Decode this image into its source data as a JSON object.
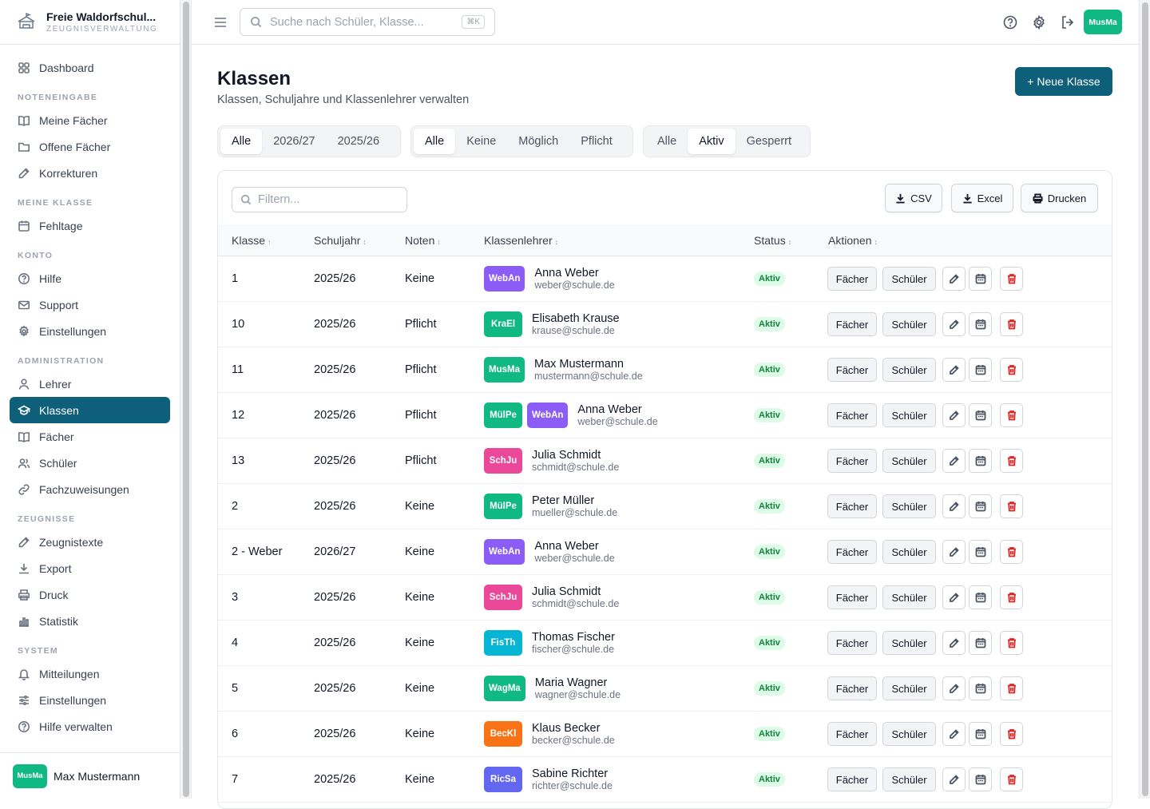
{
  "brand": {
    "title": "Freie Waldorfschul...",
    "subtitle": "ZEUGNISVERWALTUNG"
  },
  "nav": [
    {
      "type": "item",
      "name": "sidebar-item-dashboard",
      "icon": "dashboard",
      "label": "Dashboard"
    },
    {
      "type": "section",
      "label": "NOTENEINGABE"
    },
    {
      "type": "item",
      "name": "sidebar-item-meine-faecher",
      "icon": "book",
      "label": "Meine Fächer"
    },
    {
      "type": "item",
      "name": "sidebar-item-offene-faecher",
      "icon": "folder",
      "label": "Offene Fächer"
    },
    {
      "type": "item",
      "name": "sidebar-item-korrekturen",
      "icon": "edit",
      "label": "Korrekturen"
    },
    {
      "type": "section",
      "label": "MEINE KLASSE"
    },
    {
      "type": "item",
      "name": "sidebar-item-fehltage",
      "icon": "calendar",
      "label": "Fehltage"
    },
    {
      "type": "section",
      "label": "KONTO"
    },
    {
      "type": "item",
      "name": "sidebar-item-hilfe",
      "icon": "help",
      "label": "Hilfe"
    },
    {
      "type": "item",
      "name": "sidebar-item-support",
      "icon": "mail",
      "label": "Support"
    },
    {
      "type": "item",
      "name": "sidebar-item-einstellungen",
      "icon": "gear",
      "label": "Einstellungen"
    },
    {
      "type": "section",
      "label": "ADMINISTRATION"
    },
    {
      "type": "item",
      "name": "sidebar-item-lehrer",
      "icon": "user",
      "label": "Lehrer"
    },
    {
      "type": "item",
      "name": "sidebar-item-klassen",
      "icon": "cap",
      "label": "Klassen",
      "active": true
    },
    {
      "type": "item",
      "name": "sidebar-item-faecher",
      "icon": "book",
      "label": "Fächer"
    },
    {
      "type": "item",
      "name": "sidebar-item-schueler",
      "icon": "users",
      "label": "Schüler"
    },
    {
      "type": "item",
      "name": "sidebar-item-fachzuweisungen",
      "icon": "link",
      "label": "Fachzuweisungen"
    },
    {
      "type": "section",
      "label": "ZEUGNISSE"
    },
    {
      "type": "item",
      "name": "sidebar-item-zeugnistexte",
      "icon": "edit",
      "label": "Zeugnistexte"
    },
    {
      "type": "item",
      "name": "sidebar-item-export",
      "icon": "download",
      "label": "Export"
    },
    {
      "type": "item",
      "name": "sidebar-item-druck",
      "icon": "printer",
      "label": "Druck"
    },
    {
      "type": "item",
      "name": "sidebar-item-statistik",
      "icon": "chart",
      "label": "Statistik"
    },
    {
      "type": "section",
      "label": "SYSTEM"
    },
    {
      "type": "item",
      "name": "sidebar-item-mitteilungen",
      "icon": "bell",
      "label": "Mitteilungen"
    },
    {
      "type": "item",
      "name": "sidebar-item-system-einstellungen",
      "icon": "sliders",
      "label": "Einstellungen"
    },
    {
      "type": "item",
      "name": "sidebar-item-hilfe-verwalten",
      "icon": "help",
      "label": "Hilfe verwalten"
    }
  ],
  "user": {
    "initials": "MusMa",
    "name": "Max Mustermann"
  },
  "search": {
    "placeholder": "Suche nach Schüler, Klasse...",
    "shortcut": "⌘K"
  },
  "page": {
    "title": "Klassen",
    "subtitle": "Klassen, Schuljahre und Klassenlehrer verwalten",
    "new_button": "+ Neue Klasse"
  },
  "filters": {
    "year": {
      "options": [
        "Alle",
        "2026/27",
        "2025/26"
      ],
      "selected": 0
    },
    "grades": {
      "options": [
        "Alle",
        "Keine",
        "Möglich",
        "Pflicht"
      ],
      "selected": 0
    },
    "status": {
      "options": [
        "Alle",
        "Aktiv",
        "Gesperrt"
      ],
      "selected": 1
    }
  },
  "table": {
    "filter_placeholder": "Filtern...",
    "export": {
      "csv": "CSV",
      "excel": "Excel",
      "print": "Drucken"
    },
    "columns": [
      "Klasse",
      "Schuljahr",
      "Noten",
      "Klassenlehrer",
      "Status",
      "Aktionen"
    ],
    "sort_asc": "↑",
    "sort_none": "↕",
    "actions": {
      "faecher": "Fächer",
      "schueler": "Schüler"
    },
    "rows": [
      {
        "klasse": "1",
        "jahr": "2025/26",
        "noten": "Keine",
        "badges": [
          {
            "t": "WebAn",
            "c": "#8b5cf6"
          }
        ],
        "name": "Anna Weber",
        "email": "weber@schule.de",
        "status": "Aktiv"
      },
      {
        "klasse": "10",
        "jahr": "2025/26",
        "noten": "Pflicht",
        "badges": [
          {
            "t": "KraEl",
            "c": "#10b981"
          }
        ],
        "name": "Elisabeth Krause",
        "email": "krause@schule.de",
        "status": "Aktiv"
      },
      {
        "klasse": "11",
        "jahr": "2025/26",
        "noten": "Pflicht",
        "badges": [
          {
            "t": "MusMa",
            "c": "#10b981"
          }
        ],
        "name": "Max Mustermann",
        "email": "mustermann@schule.de",
        "status": "Aktiv"
      },
      {
        "klasse": "12",
        "jahr": "2025/26",
        "noten": "Pflicht",
        "badges": [
          {
            "t": "MülPe",
            "c": "#10b981"
          },
          {
            "t": "WebAn",
            "c": "#8b5cf6"
          }
        ],
        "name": "Anna Weber",
        "email": "weber@schule.de",
        "status": "Aktiv"
      },
      {
        "klasse": "13",
        "jahr": "2025/26",
        "noten": "Pflicht",
        "badges": [
          {
            "t": "SchJu",
            "c": "#ec4899"
          }
        ],
        "name": "Julia Schmidt",
        "email": "schmidt@schule.de",
        "status": "Aktiv"
      },
      {
        "klasse": "2",
        "jahr": "2025/26",
        "noten": "Keine",
        "badges": [
          {
            "t": "MülPe",
            "c": "#10b981"
          }
        ],
        "name": "Peter Müller",
        "email": "mueller@schule.de",
        "status": "Aktiv"
      },
      {
        "klasse": "2 - Weber",
        "jahr": "2026/27",
        "noten": "Keine",
        "badges": [
          {
            "t": "WebAn",
            "c": "#8b5cf6"
          }
        ],
        "name": "Anna Weber",
        "email": "weber@schule.de",
        "status": "Aktiv"
      },
      {
        "klasse": "3",
        "jahr": "2025/26",
        "noten": "Keine",
        "badges": [
          {
            "t": "SchJu",
            "c": "#ec4899"
          }
        ],
        "name": "Julia Schmidt",
        "email": "schmidt@schule.de",
        "status": "Aktiv"
      },
      {
        "klasse": "4",
        "jahr": "2025/26",
        "noten": "Keine",
        "badges": [
          {
            "t": "FisTh",
            "c": "#06b6d4"
          }
        ],
        "name": "Thomas Fischer",
        "email": "fischer@schule.de",
        "status": "Aktiv"
      },
      {
        "klasse": "5",
        "jahr": "2025/26",
        "noten": "Keine",
        "badges": [
          {
            "t": "WagMa",
            "c": "#10b981"
          }
        ],
        "name": "Maria Wagner",
        "email": "wagner@schule.de",
        "status": "Aktiv"
      },
      {
        "klasse": "6",
        "jahr": "2025/26",
        "noten": "Keine",
        "badges": [
          {
            "t": "BecKl",
            "c": "#f97316"
          }
        ],
        "name": "Klaus Becker",
        "email": "becker@schule.de",
        "status": "Aktiv"
      },
      {
        "klasse": "7",
        "jahr": "2025/26",
        "noten": "Keine",
        "badges": [
          {
            "t": "RicSa",
            "c": "#6366f1"
          }
        ],
        "name": "Sabine Richter",
        "email": "richter@schule.de",
        "status": "Aktiv"
      }
    ]
  }
}
